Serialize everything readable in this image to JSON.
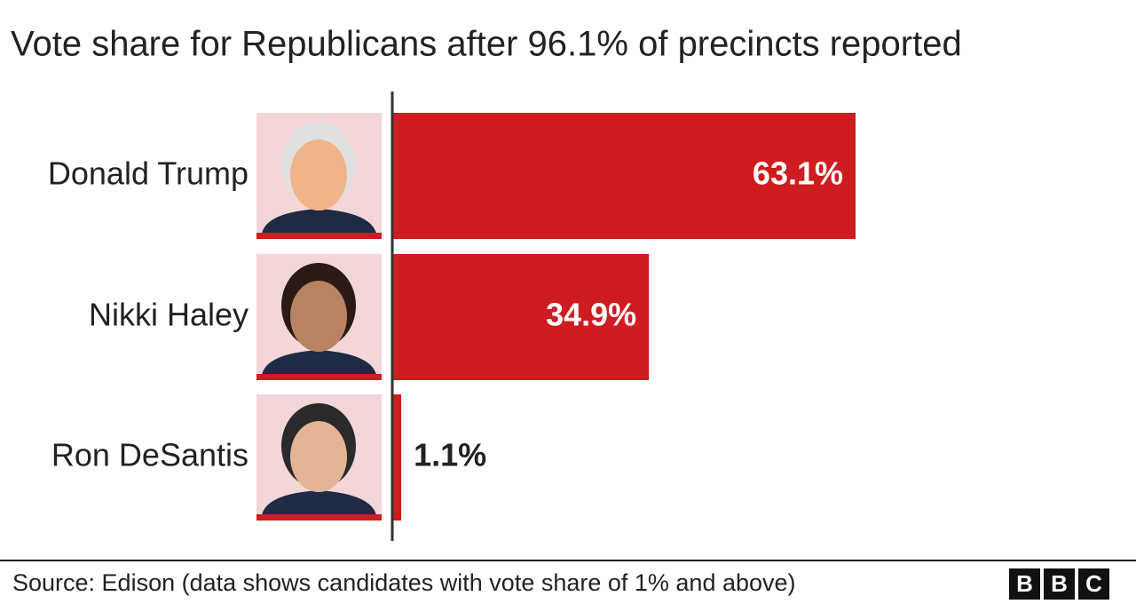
{
  "chart_data": {
    "type": "bar",
    "orientation": "horizontal",
    "title": "Vote share for Republicans after 96.1% of precincts reported",
    "categories": [
      "Donald Trump",
      "Nikki Haley",
      "Ron DeSantis"
    ],
    "values": [
      63.1,
      34.9,
      1.1
    ],
    "value_labels": [
      "63.1%",
      "34.9%",
      "1.1%"
    ],
    "color": "#ce1c20",
    "source": "Source: Edison (data shows candidates with vote share of 1% and above)",
    "logo": [
      "B",
      "B",
      "C"
    ]
  }
}
